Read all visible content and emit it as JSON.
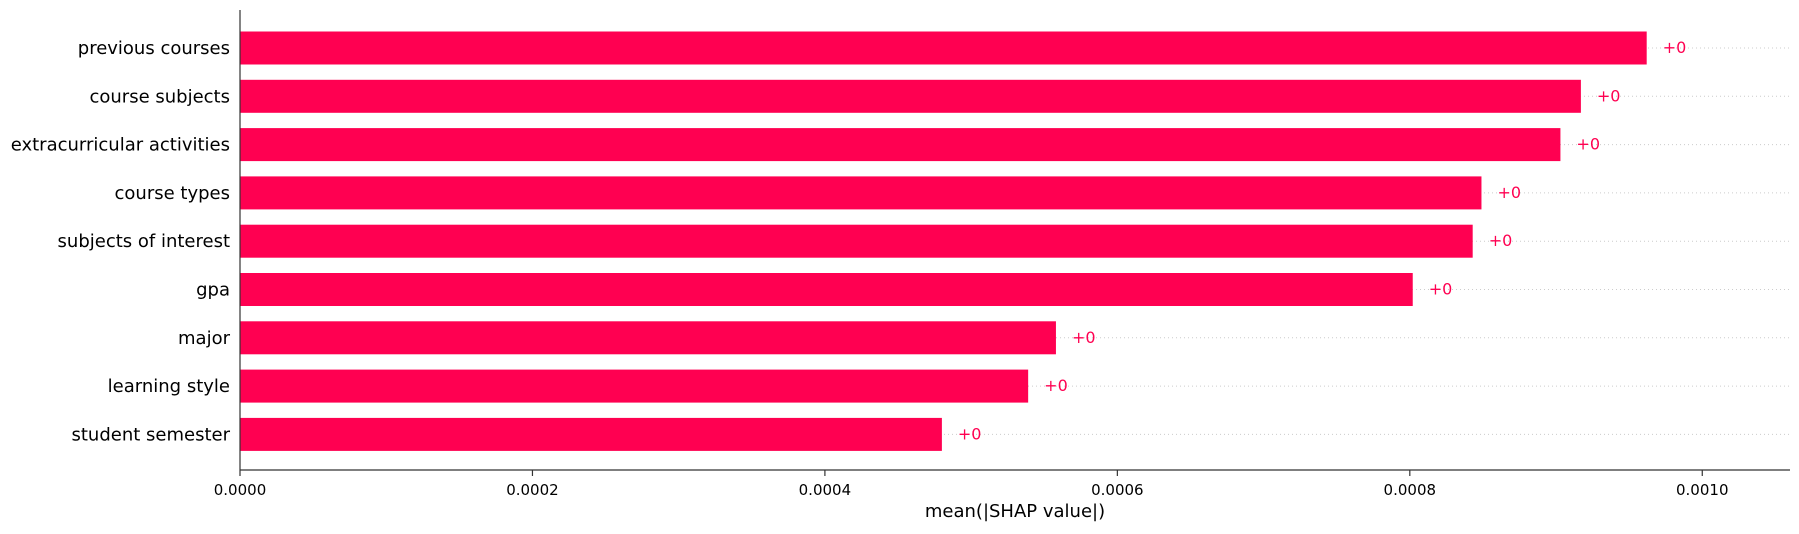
{
  "chart_data": {
    "type": "bar",
    "orientation": "horizontal",
    "categories": [
      "previous courses",
      "course subjects",
      "extracurricular activities",
      "course types",
      "subjects of interest",
      "gpa",
      "major",
      "learning style",
      "student semester"
    ],
    "values": [
      0.000962,
      0.000917,
      0.000903,
      0.000849,
      0.000843,
      0.000802,
      0.000558,
      0.000539,
      0.00048
    ],
    "data_labels": [
      "+0",
      "+0",
      "+0",
      "+0",
      "+0",
      "+0",
      "+0",
      "+0",
      "+0"
    ],
    "xlabel": "mean(|SHAP value|)",
    "ylabel": "",
    "title": "",
    "xlim": [
      0,
      0.00106
    ],
    "xticks": [
      0.0,
      0.0002,
      0.0004,
      0.0006,
      0.0008,
      0.001
    ],
    "xtick_labels": [
      "0.0000",
      "0.0002",
      "0.0004",
      "0.0006",
      "0.0008",
      "0.0010"
    ],
    "grid": "dotted row guide lines",
    "legend": "none"
  },
  "colors": {
    "bar": "#ff0051",
    "label": "#ff0051",
    "axis": "#333333",
    "text": "#000000",
    "guide": "#cccccc"
  }
}
